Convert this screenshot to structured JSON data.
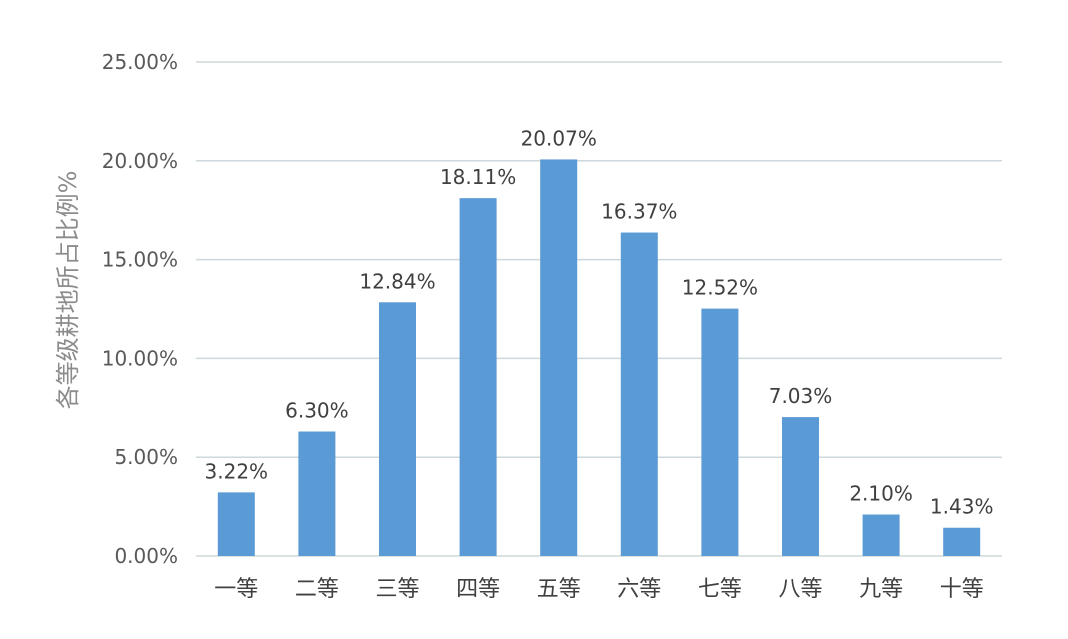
{
  "chart_data": {
    "type": "bar",
    "title": "",
    "xlabel": "",
    "ylabel": "各等级耕地所占比例%",
    "categories": [
      "一等",
      "二等",
      "三等",
      "四等",
      "五等",
      "六等",
      "七等",
      "八等",
      "九等",
      "十等"
    ],
    "values": [
      3.22,
      6.3,
      12.84,
      18.11,
      20.07,
      16.37,
      12.52,
      7.03,
      2.1,
      1.43
    ],
    "data_labels": [
      "3.22%",
      "6.30%",
      "12.84%",
      "18.11%",
      "20.07%",
      "16.37%",
      "12.52%",
      "7.03%",
      "2.10%",
      "1.43%"
    ],
    "ylim": [
      0,
      25
    ],
    "y_ticks": [
      0,
      5,
      10,
      15,
      20,
      25
    ],
    "y_tick_labels": [
      "0.00%",
      "5.00%",
      "10.00%",
      "15.00%",
      "20.00%",
      "25.00%"
    ],
    "grid": true,
    "legend": "none",
    "colors": {
      "bar": "#5b9bd5",
      "grid": "#cdd8dc"
    }
  }
}
